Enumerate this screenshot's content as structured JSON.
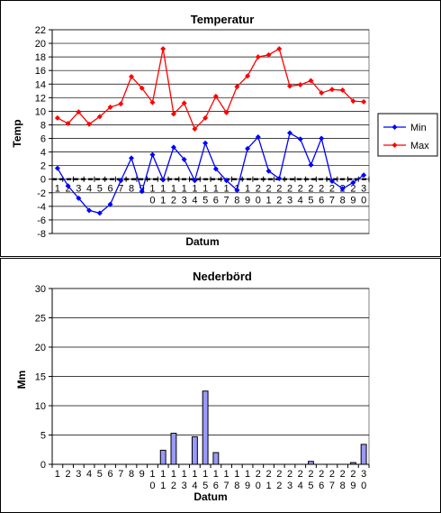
{
  "chart_data": [
    {
      "type": "line",
      "title": "Temperatur",
      "xlabel": "Datum",
      "ylabel": "Temp",
      "ylim": [
        -8,
        22
      ],
      "yticks": [
        -8,
        -6,
        -4,
        -2,
        0,
        2,
        4,
        6,
        8,
        10,
        12,
        14,
        16,
        18,
        20,
        22
      ],
      "grid": true,
      "legend_position": "right",
      "categories": [
        "1",
        "2",
        "3",
        "4",
        "5",
        "6",
        "7",
        "8",
        "9",
        "10",
        "11",
        "12",
        "13",
        "14",
        "15",
        "16",
        "17",
        "18",
        "19",
        "20",
        "21",
        "22",
        "23",
        "24",
        "25",
        "26",
        "27",
        "28",
        "29",
        "30"
      ],
      "series": [
        {
          "name": "Min",
          "color": "#0000ff",
          "marker": "diamond",
          "values": [
            1.6,
            -1.0,
            -2.8,
            -4.6,
            -5.0,
            -3.7,
            -0.2,
            3.1,
            -1.8,
            3.6,
            -0.1,
            4.7,
            2.9,
            -0.2,
            5.3,
            1.5,
            -0.2,
            -1.6,
            4.5,
            6.2,
            1.2,
            0.1,
            6.8,
            5.9,
            2.1,
            6.0,
            -0.3,
            -1.4,
            -0.5,
            0.6
          ]
        },
        {
          "name": "Max",
          "color": "#ff0000",
          "marker": "diamond",
          "values": [
            9.0,
            8.2,
            9.9,
            8.1,
            9.2,
            10.6,
            11.1,
            15.1,
            13.4,
            11.3,
            19.2,
            9.6,
            11.2,
            7.4,
            9.0,
            12.2,
            9.8,
            13.6,
            15.2,
            18.0,
            18.3,
            19.2,
            13.7,
            13.9,
            14.5,
            12.7,
            13.2,
            13.1,
            11.5,
            11.4
          ]
        }
      ]
    },
    {
      "type": "bar",
      "title": "Nederbörd",
      "xlabel": "Datum",
      "ylabel": "Mm",
      "ylim": [
        0,
        30
      ],
      "yticks": [
        0,
        5,
        10,
        15,
        20,
        25,
        30
      ],
      "grid": true,
      "bar_color": "#9999ff",
      "categories": [
        "1",
        "2",
        "3",
        "4",
        "5",
        "6",
        "7",
        "8",
        "9",
        "10",
        "11",
        "12",
        "13",
        "14",
        "15",
        "16",
        "17",
        "18",
        "19",
        "20",
        "21",
        "22",
        "23",
        "24",
        "25",
        "26",
        "27",
        "28",
        "29",
        "30"
      ],
      "values": [
        0,
        0,
        0,
        0,
        0,
        0,
        0,
        0,
        0,
        0,
        2.4,
        5.3,
        0,
        4.7,
        12.5,
        2.0,
        0,
        0,
        0,
        0,
        0,
        0,
        0,
        0,
        0.5,
        0,
        0,
        0,
        0.3,
        3.4
      ]
    }
  ]
}
